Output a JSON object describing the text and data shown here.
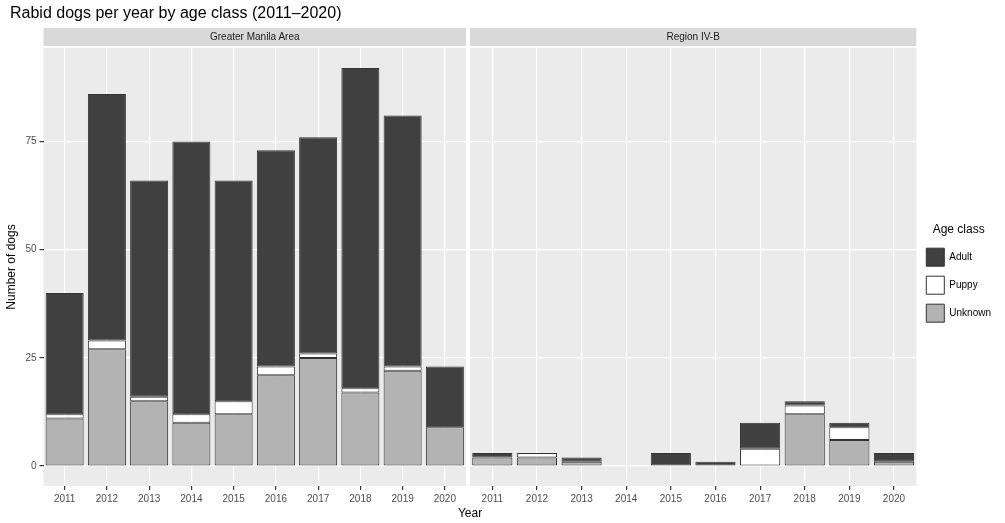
{
  "chart_data": [
    {
      "type": "bar",
      "title": "Rabid dogs per year by age class (2011–2020)",
      "subtitle": "Greater Manila Area",
      "xlabel": "Year",
      "ylabel": "Number of dogs",
      "stacked": true,
      "grid": true,
      "legend": false,
      "categories": [
        "2011",
        "2012",
        "2013",
        "2014",
        "2015",
        "2016",
        "2017",
        "2018",
        "2019",
        "2020"
      ],
      "ylim": [
        -4.6,
        96.6
      ],
      "yticks": [
        0,
        25,
        50,
        75
      ],
      "series": [
        {
          "color": "#b3b3b3",
          "values": [
            11,
            27,
            15,
            10,
            12,
            21,
            25,
            17,
            22,
            9
          ]
        },
        {
          "color": "#ffffff",
          "values": [
            1,
            2,
            1,
            2,
            3,
            2,
            1,
            1,
            1,
            0
          ]
        },
        {
          "color": "#404040",
          "values": [
            28,
            57,
            50,
            63,
            51,
            50,
            50,
            74,
            58,
            14
          ]
        }
      ]
    },
    {
      "type": "bar",
      "subtitle": "Region IV-B",
      "stacked": true,
      "grid": true,
      "legend": "right",
      "legend_title": "Age class",
      "tick_labels": "x",
      "categories": [
        "2011",
        "2012",
        "2013",
        "2014",
        "2015",
        "2016",
        "2017",
        "2018",
        "2019",
        "2020"
      ],
      "ylim": [
        -4.6,
        96.6
      ],
      "yticks": [
        0,
        25,
        50,
        75
      ],
      "series": [
        {
          "name": "Unknown",
          "color": "#b3b3b3",
          "values": [
            2,
            2,
            1,
            0,
            0,
            0,
            0,
            12,
            6,
            1
          ]
        },
        {
          "name": "Puppy",
          "color": "#ffffff",
          "values": [
            0,
            1,
            0,
            0,
            0,
            0,
            4,
            2,
            3,
            0
          ]
        },
        {
          "name": "Adult",
          "color": "#404040",
          "values": [
            1,
            0,
            1,
            0,
            3,
            1,
            6,
            1,
            1,
            2
          ]
        }
      ]
    }
  ]
}
